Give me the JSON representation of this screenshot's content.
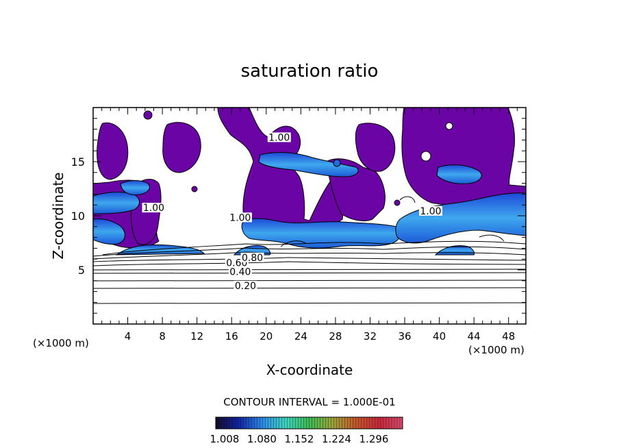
{
  "chart_data": {
    "type": "heatmap",
    "title": "saturation ratio",
    "xlabel": "X-coordinate",
    "ylabel": "Z-coordinate",
    "x_units": "(×1000 m)",
    "y_units": "(×1000 m)",
    "xlim": [
      0,
      50
    ],
    "ylim": [
      0,
      20
    ],
    "x_ticks": [
      4,
      8,
      12,
      16,
      20,
      24,
      28,
      32,
      36,
      40,
      44,
      48
    ],
    "y_ticks": [
      5,
      10,
      15
    ],
    "contour_interval_label": "CONTOUR INTERVAL = 1.000E-01",
    "contour_labels": [
      {
        "text": "0.20",
        "x": 17.6,
        "z": 3.3
      },
      {
        "text": "0.40",
        "x": 17.0,
        "z": 4.6
      },
      {
        "text": "0.60",
        "x": 16.6,
        "z": 5.4
      },
      {
        "text": "0.80",
        "x": 18.4,
        "z": 5.9
      },
      {
        "text": "1.00",
        "x": 21.5,
        "z": 17.0
      },
      {
        "text": "1.00",
        "x": 7.0,
        "z": 10.5
      },
      {
        "text": "1.00",
        "x": 17.0,
        "z": 9.6
      },
      {
        "text": "1.00",
        "x": 39.0,
        "z": 10.2
      }
    ],
    "colorbar": {
      "tick_labels": [
        "1.008",
        "1.080",
        "1.152",
        "1.224",
        "1.296"
      ],
      "colors": [
        "#160a2a",
        "#1226a6",
        "#2d8be6",
        "#3fd4c0",
        "#3cba52",
        "#9aa43a",
        "#c4572c",
        "#c8283a",
        "#d54a6e"
      ]
    },
    "regions": {
      "supersaturated_color": "#6a04a4",
      "high_supersaturation_color": "#1f6de0",
      "peak_color": "#5ac8f0"
    }
  }
}
